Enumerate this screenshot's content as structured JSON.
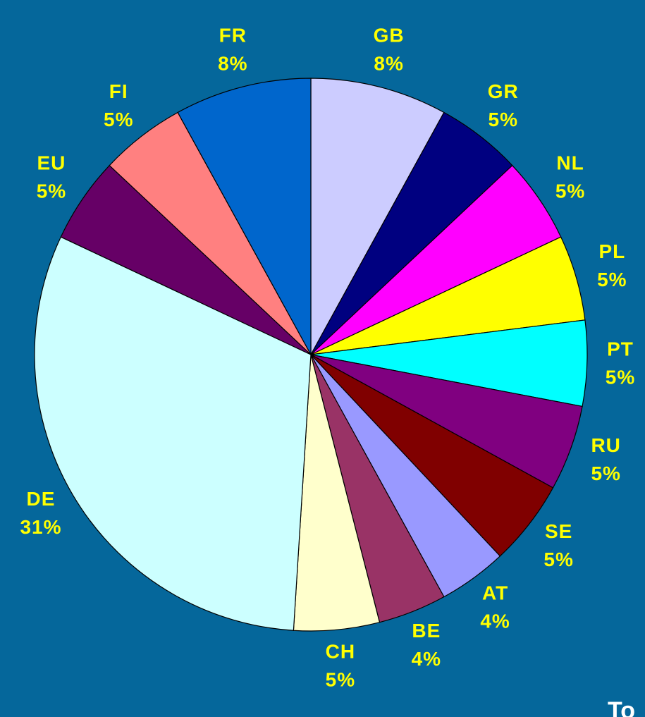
{
  "chart_data": {
    "type": "pie",
    "categories": [
      "GB",
      "GR",
      "NL",
      "PL",
      "PT",
      "RU",
      "SE",
      "AT",
      "BE",
      "CH",
      "DE",
      "EU",
      "FI",
      "FR"
    ],
    "values": [
      8,
      5,
      5,
      5,
      5,
      5,
      5,
      4,
      4,
      5,
      31,
      5,
      5,
      8
    ],
    "value_labels": [
      "8%",
      "5%",
      "5%",
      "5%",
      "5%",
      "5%",
      "5%",
      "4%",
      "4%",
      "5%",
      "31%",
      "5%",
      "5%",
      "8%"
    ],
    "colors": [
      "#ccccff",
      "#000080",
      "#ff00ff",
      "#ffff00",
      "#00ffff",
      "#800080",
      "#800000",
      "#9999ff",
      "#993366",
      "#ffffcc",
      "#ccffff",
      "#660066",
      "#ff8080",
      "#0066cc"
    ],
    "annotation": "To"
  }
}
